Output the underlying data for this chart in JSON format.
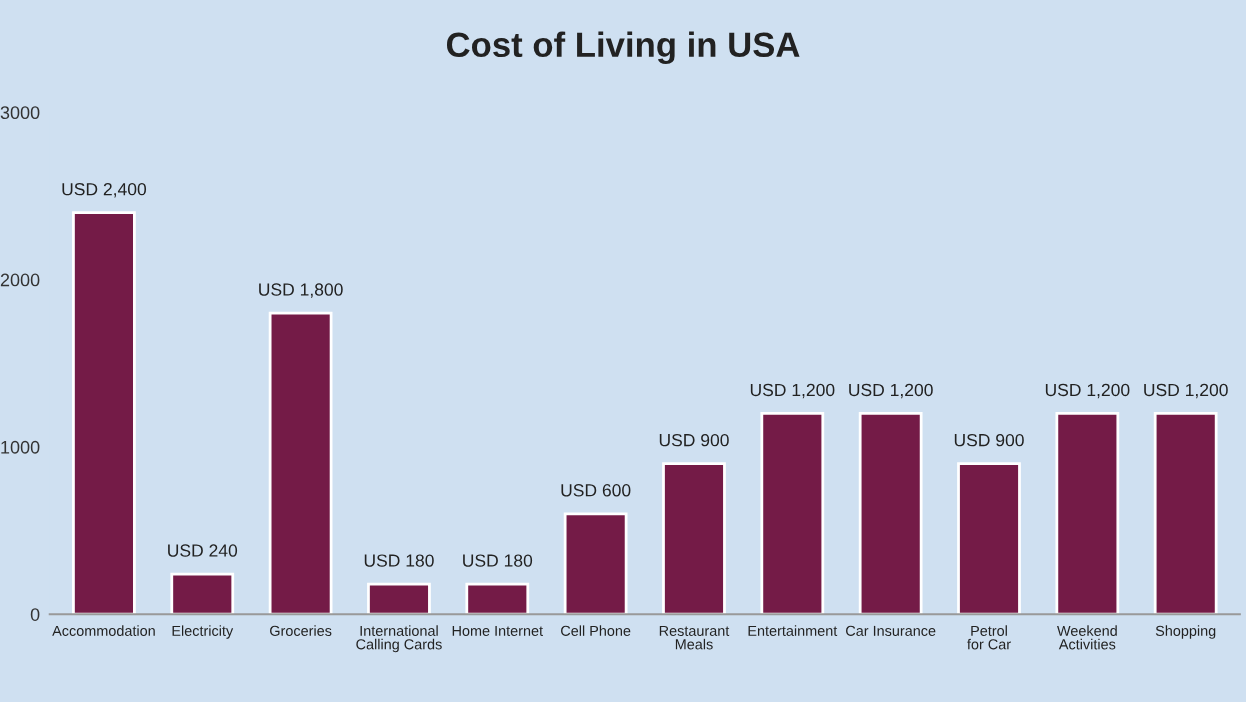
{
  "chart_data": {
    "type": "bar",
    "title": "Cost of Living in USA",
    "categories": [
      "Accommodation",
      "Electricity",
      "Groceries",
      "International Calling Cards",
      "Home Internet",
      "Cell Phone",
      "Restaurant Meals",
      "Entertainment",
      "Car Insurance",
      "Petrol for Car",
      "Weekend Activities",
      "Shopping"
    ],
    "values": [
      2400,
      240,
      1800,
      180,
      180,
      600,
      900,
      1200,
      1200,
      900,
      1200,
      1200
    ],
    "value_labels": [
      "USD 2,400",
      "USD 240",
      "USD 1,800",
      "USD 180",
      "USD 180",
      "USD 600",
      "USD 900",
      "USD 1,200",
      "USD 1,200",
      "USD 900",
      "USD 1,200",
      "USD 1,200"
    ],
    "color": "#741b47",
    "ylim": [
      0,
      3000
    ],
    "yticks": [
      0,
      1000,
      2000,
      3000
    ],
    "grid": false,
    "legend": false
  }
}
